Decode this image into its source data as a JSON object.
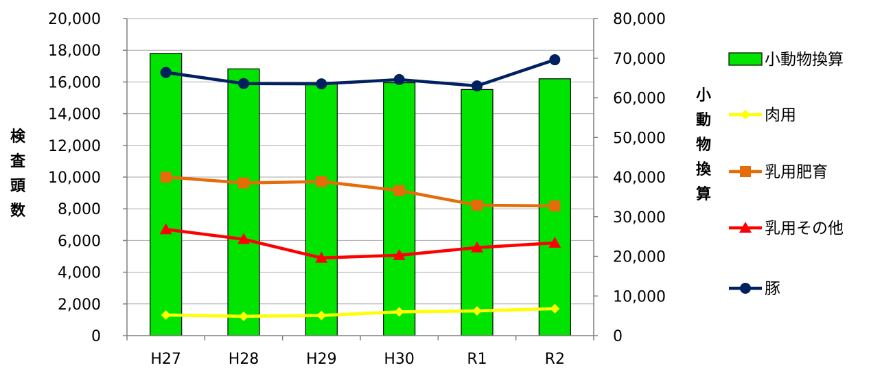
{
  "chart_data": {
    "type": "bar",
    "categories": [
      "H27",
      "H28",
      "H29",
      "H30",
      "R1",
      "R2"
    ],
    "y_left": {
      "label": "検査頭数",
      "ylim": [
        0,
        20000
      ],
      "ticks": [
        "0",
        "2,000",
        "4,000",
        "6,000",
        "8,000",
        "10,000",
        "12,000",
        "14,000",
        "16,000",
        "18,000",
        "20,000"
      ]
    },
    "y_right": {
      "label": "小動物換算",
      "ylim": [
        0,
        80000
      ],
      "ticks": [
        "0",
        "10,000",
        "20,000",
        "30,000",
        "40,000",
        "50,000",
        "60,000",
        "70,000",
        "80,000"
      ]
    },
    "grid": true,
    "legend_position": "right",
    "series": [
      {
        "name": "小動物換算",
        "kind": "bar",
        "axis": "right",
        "color": "#00e400",
        "stroke": "#000000",
        "values": [
          71200,
          67300,
          63800,
          63800,
          62100,
          64800
        ]
      },
      {
        "name": "肉用",
        "kind": "line",
        "axis": "left",
        "color": "#ffff00",
        "marker": "diamond",
        "values": [
          1300,
          1220,
          1270,
          1500,
          1560,
          1700
        ]
      },
      {
        "name": "乳用肥育",
        "kind": "line",
        "axis": "left",
        "color": "#e46c0a",
        "marker": "square",
        "values": [
          10000,
          9630,
          9720,
          9150,
          8230,
          8180
        ]
      },
      {
        "name": "乳用その他",
        "kind": "line",
        "axis": "left",
        "color": "#ff0000",
        "marker": "triangle",
        "values": [
          6700,
          6080,
          4900,
          5070,
          5550,
          5850
        ]
      },
      {
        "name": "豚",
        "kind": "line",
        "axis": "left",
        "color": "#002060",
        "marker": "circle",
        "values": [
          16600,
          15900,
          15880,
          16150,
          15750,
          17400
        ]
      }
    ]
  }
}
